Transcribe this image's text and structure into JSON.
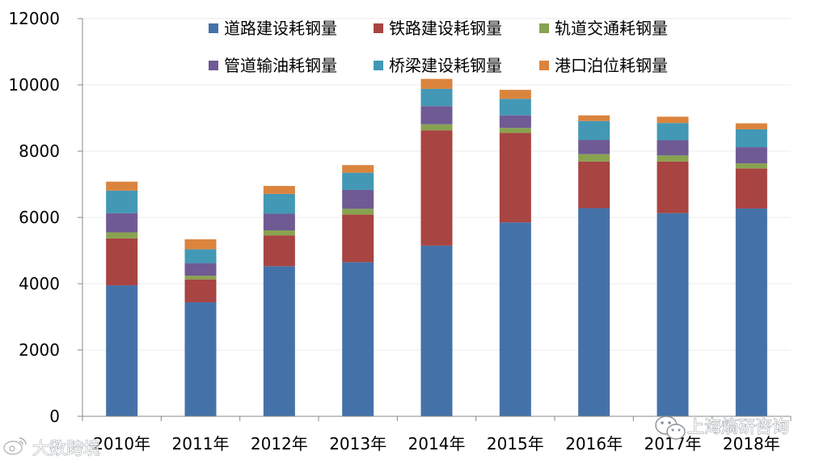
{
  "chart_data": {
    "type": "bar",
    "stacked": true,
    "title": "",
    "xlabel": "",
    "ylabel": "",
    "ylim": [
      0,
      12000
    ],
    "yticks": [
      0,
      2000,
      4000,
      6000,
      8000,
      10000,
      12000
    ],
    "grid": true,
    "legend_position": "top",
    "categories": [
      "2010年",
      "2011年",
      "2012年",
      "2013年",
      "2014年",
      "2015年",
      "2016年",
      "2017年",
      "2018年"
    ],
    "series": [
      {
        "name": "道路建设耗钢量",
        "color": "#4472a8",
        "values": [
          3950,
          3440,
          4530,
          4650,
          5150,
          5850,
          6280,
          6130,
          6270
        ]
      },
      {
        "name": "铁路建设耗钢量",
        "color": "#a84442",
        "values": [
          1420,
          690,
          930,
          1440,
          3480,
          2700,
          1410,
          1560,
          1210
        ]
      },
      {
        "name": "轨道交通耗钢量",
        "color": "#88a34f",
        "values": [
          180,
          110,
          150,
          170,
          180,
          150,
          220,
          180,
          150
        ]
      },
      {
        "name": "管道输油耗钢量",
        "color": "#6f5a93",
        "values": [
          580,
          380,
          500,
          570,
          550,
          380,
          430,
          460,
          490
        ]
      },
      {
        "name": "桥梁建设耗钢量",
        "color": "#4298b5",
        "values": [
          680,
          420,
          600,
          520,
          520,
          500,
          570,
          520,
          540
        ]
      },
      {
        "name": "港口泊位耗钢量",
        "color": "#db843d",
        "values": [
          270,
          300,
          240,
          230,
          300,
          270,
          170,
          190,
          180
        ]
      }
    ]
  },
  "watermarks": {
    "bottom_left": "大数跨境",
    "bottom_right": "上海熵研咨询"
  }
}
